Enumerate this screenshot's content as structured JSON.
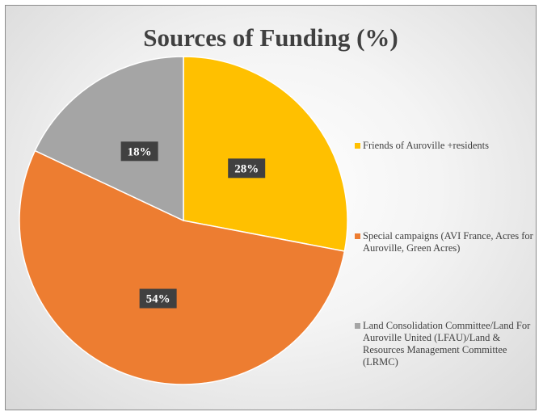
{
  "chart_data": {
    "type": "pie",
    "title": "Sources of Funding (%)",
    "categories": [
      "Friends of Auroville +residents",
      "Special campaigns (AVI France, Acres for Auroville, Green Acres)",
      "Land Consolidation Committee/Land For Auroville United (LFAU)/Land & Resources Management Committee (LRMC)"
    ],
    "values": [
      28,
      54,
      18
    ],
    "data_labels": [
      "28%",
      "54%",
      "18%"
    ],
    "colors": [
      "#FFC000",
      "#ED7D31",
      "#A5A5A5"
    ],
    "legend_position": "right",
    "start_angle": "12 o'clock, clockwise"
  }
}
